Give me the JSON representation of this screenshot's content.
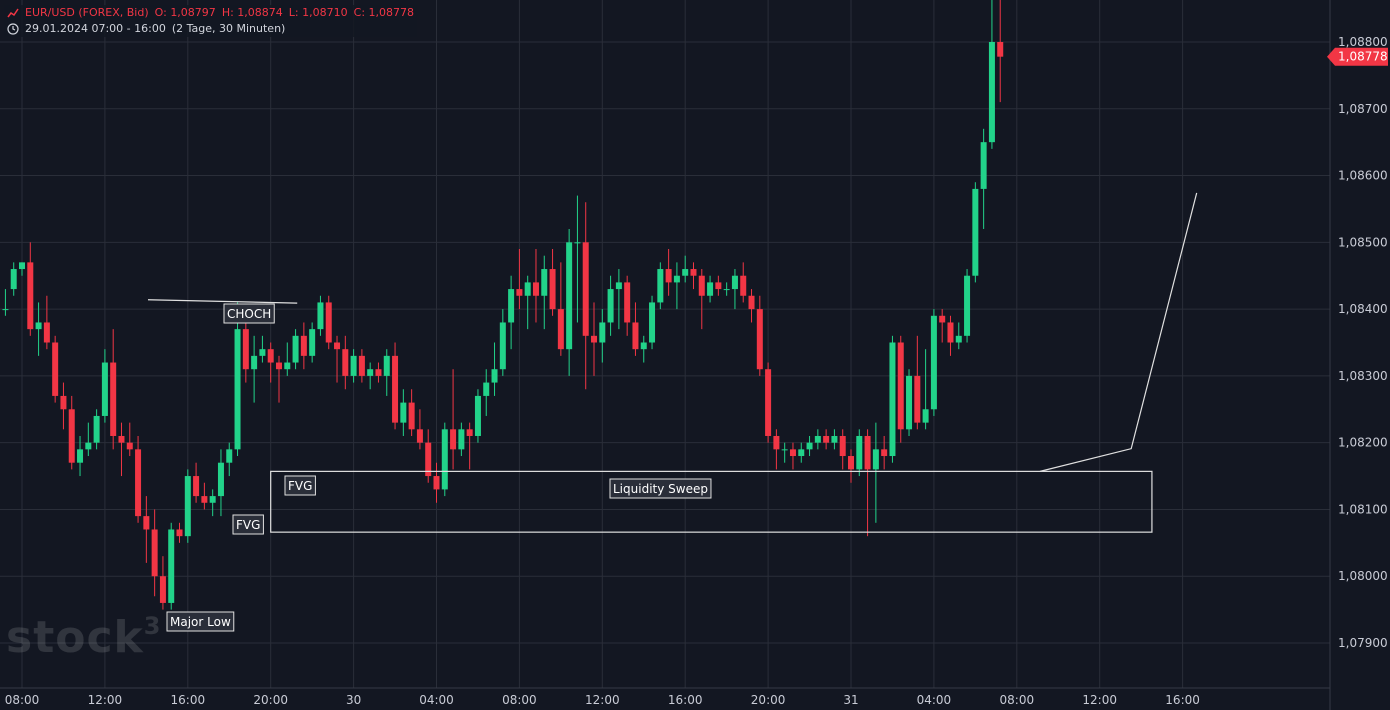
{
  "header": {
    "icon": "line-chart-icon",
    "symbol": "EUR/USD (FOREX, Bid)",
    "open_label": "O:",
    "open": "1,08797",
    "high_label": "H:",
    "high": "1,08874",
    "low_label": "L:",
    "low": "1,08710",
    "close_label": "C:",
    "close": "1,08778",
    "time_icon": "clock-icon",
    "range": "29.01.2024 07:00 - 16:00",
    "span": "(2 Tage, 30 Minuten)"
  },
  "watermark": {
    "text": "stock",
    "sup": "3"
  },
  "colors": {
    "background": "#131722",
    "grid": "#2a2e39",
    "up": "#22d38a",
    "down": "#f23645",
    "text": "#c9ccd6",
    "annotation": "#e0e0e0"
  },
  "chart_data": {
    "type": "candlestick",
    "timeframe": "30 Minuten",
    "ylim": [
      1.0785,
      1.0887
    ],
    "y_ticks": [
      {
        "value": 1.088,
        "label": "1,08800"
      },
      {
        "value": 1.087,
        "label": "1,08700"
      },
      {
        "value": 1.086,
        "label": "1,08600"
      },
      {
        "value": 1.085,
        "label": "1,08500"
      },
      {
        "value": 1.084,
        "label": "1,08400"
      },
      {
        "value": 1.083,
        "label": "1,08300"
      },
      {
        "value": 1.082,
        "label": "1,08200"
      },
      {
        "value": 1.081,
        "label": "1,08100"
      },
      {
        "value": 1.08,
        "label": "1,08000"
      },
      {
        "value": 1.079,
        "label": "1,07900"
      }
    ],
    "x_ticks": [
      {
        "index": 2,
        "label": "08:00"
      },
      {
        "index": 12,
        "label": "12:00"
      },
      {
        "index": 22,
        "label": "16:00"
      },
      {
        "index": 32,
        "label": "20:00"
      },
      {
        "index": 42,
        "label": "30"
      },
      {
        "index": 52,
        "label": "04:00"
      },
      {
        "index": 62,
        "label": "08:00"
      },
      {
        "index": 72,
        "label": "12:00"
      },
      {
        "index": 82,
        "label": "16:00"
      },
      {
        "index": 92,
        "label": "20:00"
      },
      {
        "index": 102,
        "label": "31"
      },
      {
        "index": 112,
        "label": "04:00"
      },
      {
        "index": 122,
        "label": "08:00"
      },
      {
        "index": 132,
        "label": "12:00"
      },
      {
        "index": 142,
        "label": "16:00"
      }
    ],
    "price_label": {
      "value": 1.08778,
      "label": "1,08778"
    },
    "candles": [
      [
        1.084,
        1.0843,
        1.0839,
        1.084
      ],
      [
        1.0843,
        1.0847,
        1.0842,
        1.0846
      ],
      [
        1.0846,
        1.0847,
        1.0845,
        1.0847
      ],
      [
        1.0847,
        1.085,
        1.0836,
        1.0837
      ],
      [
        1.0837,
        1.0841,
        1.0833,
        1.0838
      ],
      [
        1.0838,
        1.0842,
        1.0834,
        1.0835
      ],
      [
        1.0835,
        1.0836,
        1.0826,
        1.0827
      ],
      [
        1.0827,
        1.0829,
        1.0822,
        1.0825
      ],
      [
        1.0825,
        1.0827,
        1.0816,
        1.0817
      ],
      [
        1.0817,
        1.0821,
        1.0815,
        1.0819
      ],
      [
        1.0819,
        1.0823,
        1.0818,
        1.082
      ],
      [
        1.082,
        1.0825,
        1.0819,
        1.0824
      ],
      [
        1.0824,
        1.0834,
        1.0823,
        1.0832
      ],
      [
        1.0832,
        1.0837,
        1.0819,
        1.0821
      ],
      [
        1.0821,
        1.0823,
        1.0815,
        1.082
      ],
      [
        1.082,
        1.0823,
        1.0818,
        1.0819
      ],
      [
        1.0819,
        1.0821,
        1.0808,
        1.0809
      ],
      [
        1.0809,
        1.0812,
        1.0802,
        1.0807
      ],
      [
        1.0807,
        1.081,
        1.0797,
        1.08
      ],
      [
        1.08,
        1.0803,
        1.0795,
        1.0796
      ],
      [
        1.0796,
        1.0808,
        1.0795,
        1.0807
      ],
      [
        1.0807,
        1.0808,
        1.0805,
        1.0806
      ],
      [
        1.0806,
        1.0816,
        1.0805,
        1.0815
      ],
      [
        1.0815,
        1.0817,
        1.0811,
        1.0812
      ],
      [
        1.0812,
        1.0814,
        1.081,
        1.0811
      ],
      [
        1.0811,
        1.0813,
        1.0809,
        1.0812
      ],
      [
        1.0812,
        1.0819,
        1.0809,
        1.0817
      ],
      [
        1.0817,
        1.082,
        1.0815,
        1.0819
      ],
      [
        1.0819,
        1.0841,
        1.0818,
        1.0837
      ],
      [
        1.0837,
        1.0839,
        1.0829,
        1.0831
      ],
      [
        1.0831,
        1.0836,
        1.0826,
        1.0833
      ],
      [
        1.0833,
        1.0836,
        1.0832,
        1.0834
      ],
      [
        1.0834,
        1.0835,
        1.0829,
        1.0832
      ],
      [
        1.0832,
        1.0833,
        1.0826,
        1.0831
      ],
      [
        1.0831,
        1.0835,
        1.083,
        1.0832
      ],
      [
        1.0832,
        1.0837,
        1.0831,
        1.0836
      ],
      [
        1.0836,
        1.0838,
        1.0831,
        1.0833
      ],
      [
        1.0833,
        1.0838,
        1.0832,
        1.0837
      ],
      [
        1.0837,
        1.0842,
        1.0836,
        1.0841
      ],
      [
        1.0841,
        1.0842,
        1.0834,
        1.0835
      ],
      [
        1.0835,
        1.0836,
        1.0829,
        1.0834
      ],
      [
        1.0834,
        1.0836,
        1.0828,
        1.083
      ],
      [
        1.083,
        1.0834,
        1.0829,
        1.0833
      ],
      [
        1.0833,
        1.0834,
        1.0829,
        1.083
      ],
      [
        1.083,
        1.0832,
        1.0828,
        1.0831
      ],
      [
        1.0831,
        1.0832,
        1.0829,
        1.083
      ],
      [
        1.083,
        1.0834,
        1.0827,
        1.0833
      ],
      [
        1.0833,
        1.0835,
        1.0822,
        1.0823
      ],
      [
        1.0823,
        1.0828,
        1.0821,
        1.0826
      ],
      [
        1.0826,
        1.0828,
        1.0821,
        1.0822
      ],
      [
        1.0822,
        1.0825,
        1.0819,
        1.082
      ],
      [
        1.082,
        1.0822,
        1.0814,
        1.0815
      ],
      [
        1.0815,
        1.0817,
        1.0811,
        1.0813
      ],
      [
        1.0813,
        1.0823,
        1.0812,
        1.0822
      ],
      [
        1.0822,
        1.0831,
        1.0816,
        1.0819
      ],
      [
        1.0819,
        1.0823,
        1.0818,
        1.0822
      ],
      [
        1.0822,
        1.0823,
        1.0816,
        1.0821
      ],
      [
        1.0821,
        1.0828,
        1.082,
        1.0827
      ],
      [
        1.0827,
        1.0831,
        1.0824,
        1.0829
      ],
      [
        1.0829,
        1.0835,
        1.0827,
        1.0831
      ],
      [
        1.0831,
        1.084,
        1.083,
        1.0838
      ],
      [
        1.0838,
        1.0845,
        1.0834,
        1.0843
      ],
      [
        1.0843,
        1.0849,
        1.084,
        1.0842
      ],
      [
        1.0842,
        1.0845,
        1.0837,
        1.0844
      ],
      [
        1.0844,
        1.0849,
        1.0838,
        1.0842
      ],
      [
        1.0842,
        1.0848,
        1.0837,
        1.0846
      ],
      [
        1.0846,
        1.0849,
        1.0839,
        1.084
      ],
      [
        1.084,
        1.0847,
        1.0833,
        1.0834
      ],
      [
        1.0834,
        1.0852,
        1.083,
        1.085
      ],
      [
        1.085,
        1.0857,
        1.0838,
        1.085
      ],
      [
        1.085,
        1.0856,
        1.0828,
        1.0836
      ],
      [
        1.0836,
        1.0841,
        1.083,
        1.0835
      ],
      [
        1.0835,
        1.084,
        1.0832,
        1.0838
      ],
      [
        1.0838,
        1.0845,
        1.0836,
        1.0843
      ],
      [
        1.0843,
        1.0846,
        1.0837,
        1.0844
      ],
      [
        1.0844,
        1.0845,
        1.0836,
        1.0838
      ],
      [
        1.0838,
        1.0841,
        1.0833,
        1.0834
      ],
      [
        1.0834,
        1.0836,
        1.0832,
        1.0835
      ],
      [
        1.0835,
        1.0842,
        1.0834,
        1.0841
      ],
      [
        1.0841,
        1.0847,
        1.084,
        1.0846
      ],
      [
        1.0846,
        1.0849,
        1.0842,
        1.0844
      ],
      [
        1.0844,
        1.0847,
        1.084,
        1.0845
      ],
      [
        1.0845,
        1.0848,
        1.0844,
        1.0846
      ],
      [
        1.0846,
        1.0847,
        1.0843,
        1.0845
      ],
      [
        1.0845,
        1.0846,
        1.0837,
        1.0842
      ],
      [
        1.0842,
        1.0845,
        1.0841,
        1.0844
      ],
      [
        1.0844,
        1.0845,
        1.0842,
        1.0843
      ],
      [
        1.0843,
        1.0844,
        1.0842,
        1.0843
      ],
      [
        1.0843,
        1.0846,
        1.084,
        1.0845
      ],
      [
        1.0845,
        1.0847,
        1.0841,
        1.0842
      ],
      [
        1.0842,
        1.0843,
        1.0838,
        1.084
      ],
      [
        1.084,
        1.0842,
        1.083,
        1.0831
      ],
      [
        1.0831,
        1.0832,
        1.082,
        1.0821
      ],
      [
        1.0821,
        1.0822,
        1.0816,
        1.0819
      ],
      [
        1.0819,
        1.082,
        1.0817,
        1.0819
      ],
      [
        1.0819,
        1.082,
        1.0816,
        1.0818
      ],
      [
        1.0818,
        1.082,
        1.0817,
        1.0819
      ],
      [
        1.0819,
        1.0821,
        1.0818,
        1.082
      ],
      [
        1.082,
        1.0822,
        1.0819,
        1.0821
      ],
      [
        1.0821,
        1.0822,
        1.0819,
        1.082
      ],
      [
        1.082,
        1.0822,
        1.0819,
        1.0821
      ],
      [
        1.0821,
        1.0822,
        1.0816,
        1.0818
      ],
      [
        1.0818,
        1.0819,
        1.0814,
        1.0816
      ],
      [
        1.0816,
        1.0822,
        1.0815,
        1.0821
      ],
      [
        1.0821,
        1.0822,
        1.0806,
        1.0816
      ],
      [
        1.0816,
        1.0823,
        1.0808,
        1.0819
      ],
      [
        1.0819,
        1.0821,
        1.0816,
        1.0818
      ],
      [
        1.0818,
        1.0836,
        1.0817,
        1.0835
      ],
      [
        1.0835,
        1.0836,
        1.082,
        1.0822
      ],
      [
        1.0822,
        1.0831,
        1.0821,
        1.083
      ],
      [
        1.083,
        1.0836,
        1.0822,
        1.0823
      ],
      [
        1.0823,
        1.0834,
        1.0822,
        1.0825
      ],
      [
        1.0825,
        1.084,
        1.0824,
        1.0839
      ],
      [
        1.0839,
        1.084,
        1.0835,
        1.0838
      ],
      [
        1.0838,
        1.0839,
        1.0833,
        1.0835
      ],
      [
        1.0835,
        1.0838,
        1.0834,
        1.0836
      ],
      [
        1.0836,
        1.0846,
        1.0835,
        1.0845
      ],
      [
        1.0845,
        1.0859,
        1.0844,
        1.0858
      ],
      [
        1.0858,
        1.0867,
        1.0852,
        1.0865
      ],
      [
        1.0865,
        1.0887,
        1.0864,
        1.088
      ],
      [
        1.088,
        1.0887,
        1.0871,
        1.08778
      ]
    ],
    "annotations": [
      {
        "type": "label",
        "text": "CHOCH"
      },
      {
        "type": "label",
        "text": "FVG"
      },
      {
        "type": "label",
        "text": "FVG"
      },
      {
        "type": "label",
        "text": "Liquidity Sweep"
      },
      {
        "type": "label",
        "text": "Major Low"
      }
    ]
  }
}
